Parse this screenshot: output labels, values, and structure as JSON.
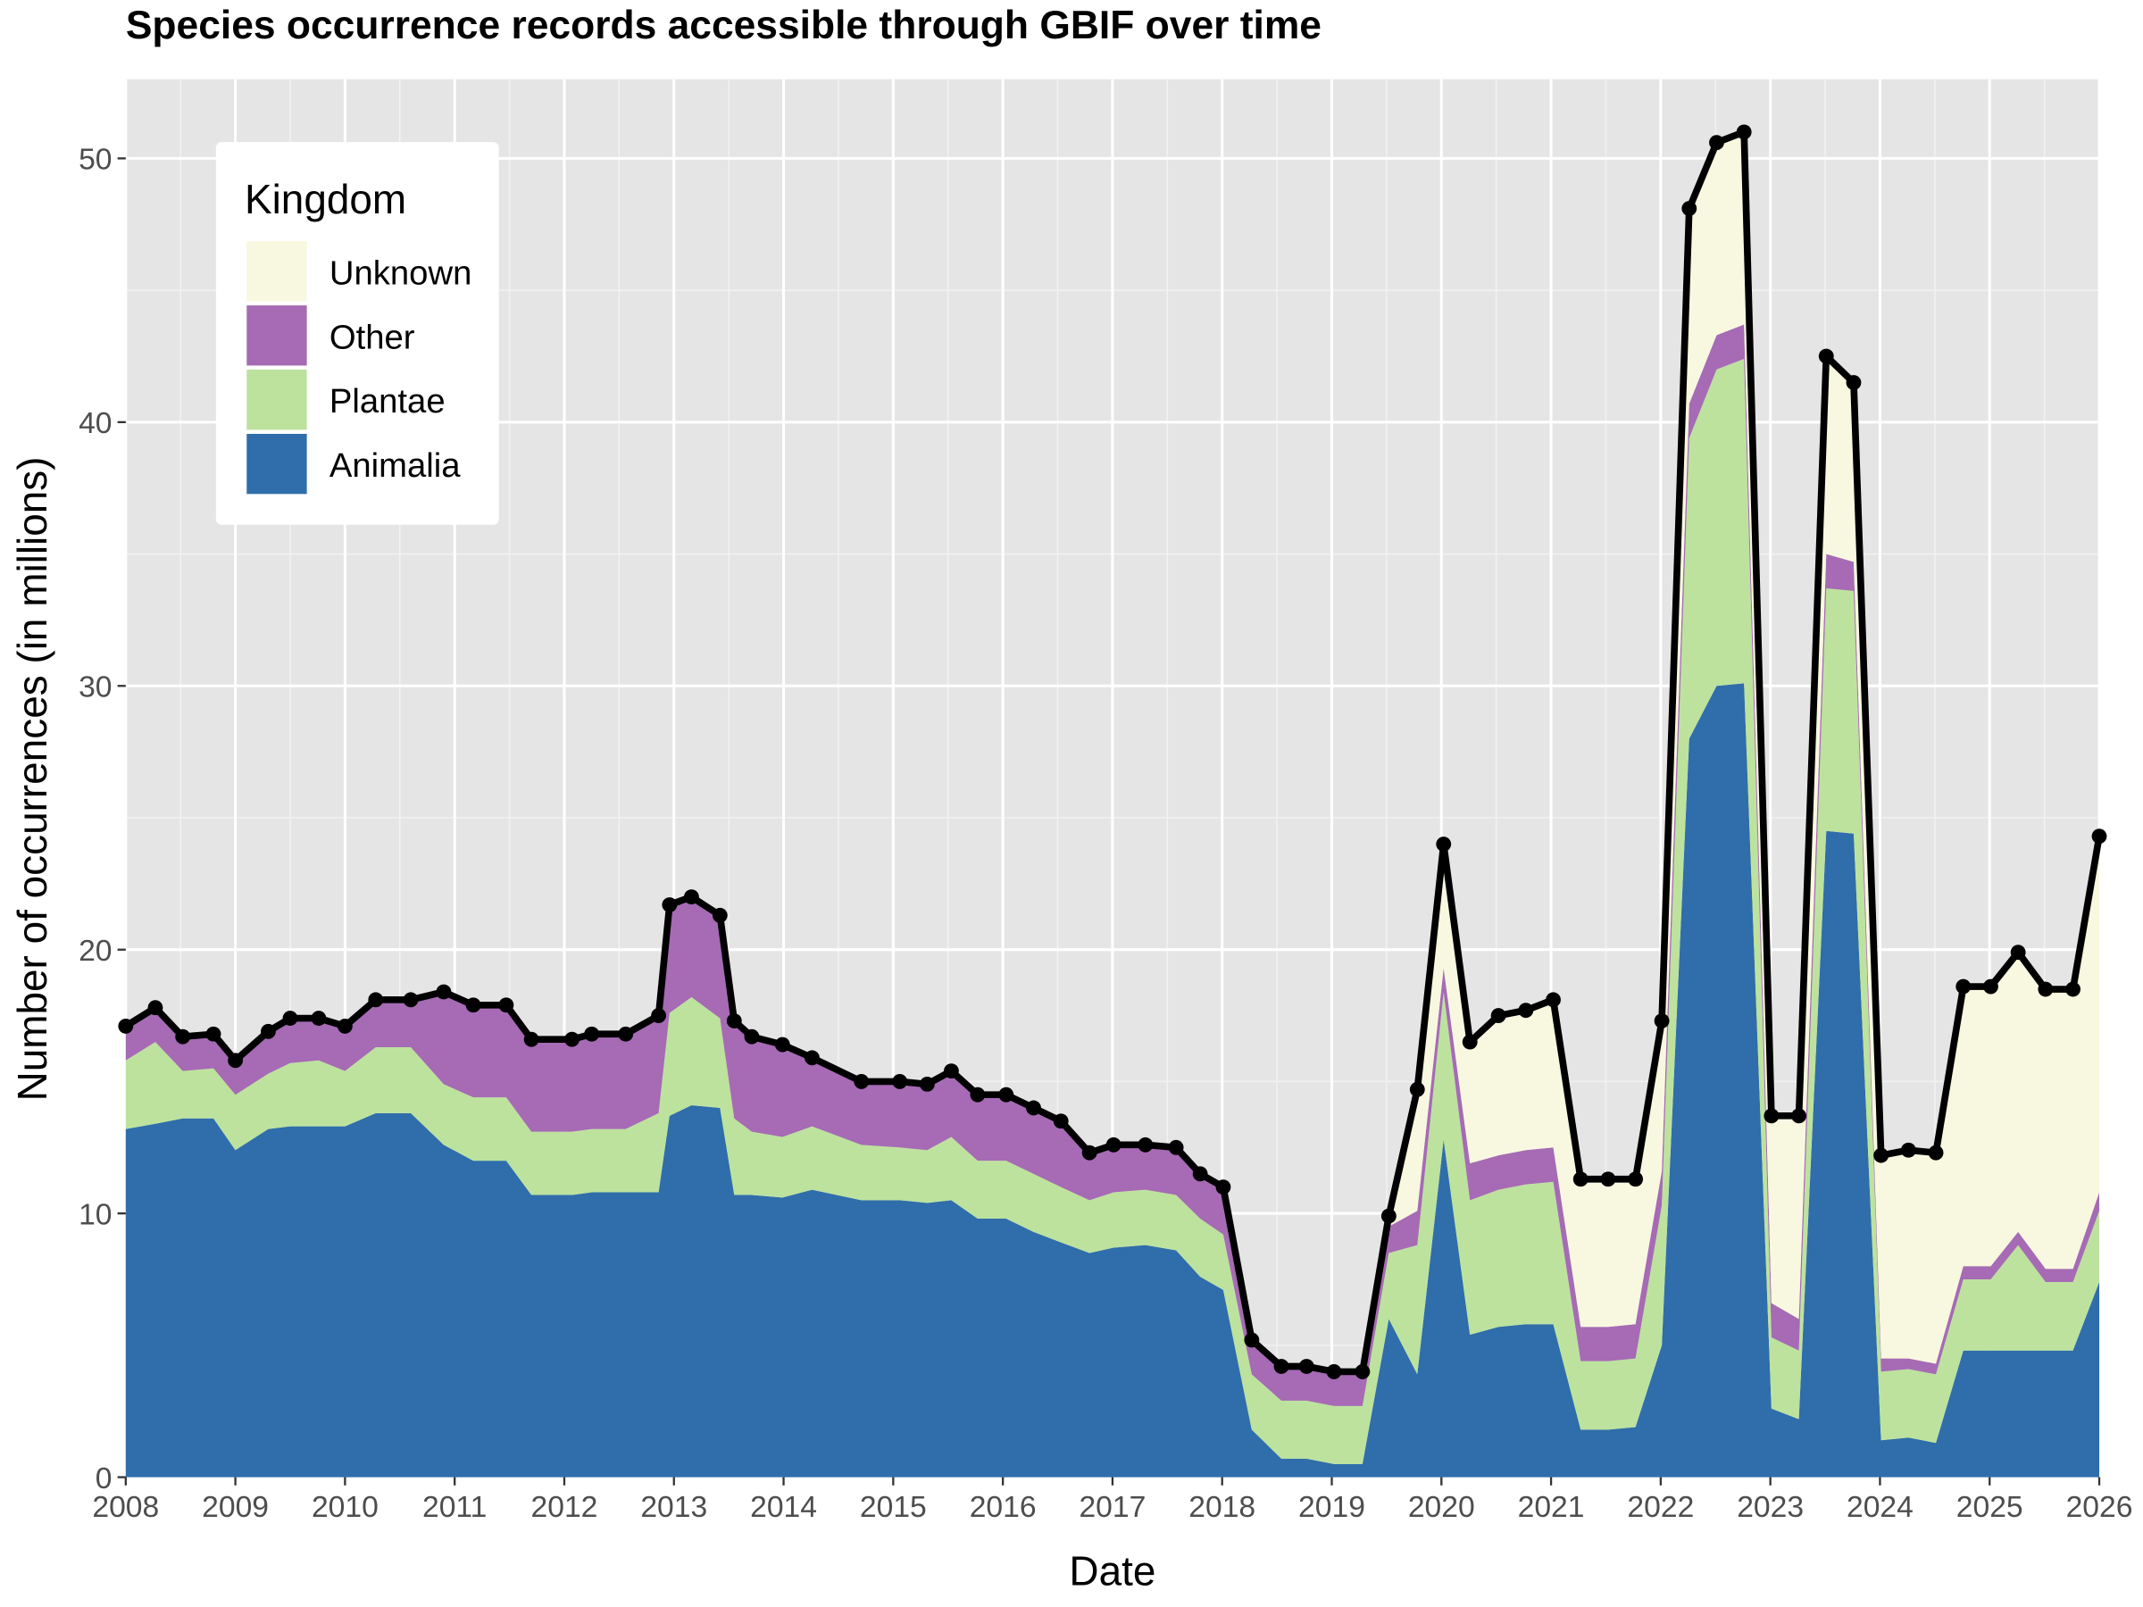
{
  "chart_data": {
    "type": "stacked-area",
    "title": "Species occurrence records accessible through GBIF over time",
    "x_label": "Date",
    "y_label": "Number of occurrences (in millions)",
    "legend_title": "Kingdom",
    "legend_position": "top-left",
    "grid": true,
    "stack_line_color": "#000000",
    "xlim": [
      2008,
      2026
    ],
    "xticks": [
      2008,
      2009,
      2010,
      2011,
      2012,
      2013,
      2014,
      2015,
      2016,
      2017,
      2018,
      2019,
      2020,
      2021,
      2022,
      2023,
      2024,
      2025,
      2026
    ],
    "ylim": [
      0,
      53
    ],
    "yticks": [
      0,
      10,
      20,
      30,
      40,
      50
    ],
    "x": [
      2008.0,
      2008.27,
      2008.52,
      2008.8,
      2009.0,
      2009.3,
      2009.5,
      2009.76,
      2010.0,
      2010.28,
      2010.6,
      2010.9,
      2011.17,
      2011.47,
      2011.7,
      2012.07,
      2012.25,
      2012.56,
      2012.86,
      2012.96,
      2013.16,
      2013.42,
      2013.55,
      2013.71,
      2013.99,
      2014.26,
      2014.71,
      2015.06,
      2015.31,
      2015.53,
      2015.77,
      2016.03,
      2016.28,
      2016.53,
      2016.79,
      2017.01,
      2017.3,
      2017.58,
      2017.8,
      2018.01,
      2018.27,
      2018.54,
      2018.77,
      2019.02,
      2019.28,
      2019.52,
      2019.78,
      2020.02,
      2020.26,
      2020.52,
      2020.77,
      2021.02,
      2021.27,
      2021.52,
      2021.77,
      2022.01,
      2022.26,
      2022.51,
      2022.76,
      2023.01,
      2023.26,
      2023.51,
      2023.76,
      2024.01,
      2024.26,
      2024.51,
      2024.76,
      2025.01,
      2025.26,
      2025.51,
      2025.76,
      2026.0
    ],
    "series": [
      {
        "name": "Animalia",
        "color": "#2f6eaa",
        "values": [
          13.2,
          13.4,
          13.6,
          13.6,
          12.4,
          13.2,
          13.3,
          13.3,
          13.3,
          13.8,
          13.8,
          12.6,
          12.0,
          12.0,
          10.7,
          10.7,
          10.8,
          10.8,
          10.8,
          13.7,
          14.1,
          14.0,
          10.7,
          10.7,
          10.6,
          10.9,
          10.5,
          10.5,
          10.4,
          10.5,
          9.8,
          9.8,
          9.3,
          8.9,
          8.5,
          8.7,
          8.8,
          8.6,
          7.6,
          7.1,
          1.8,
          0.7,
          0.7,
          0.5,
          0.5,
          6.0,
          3.9,
          12.8,
          5.4,
          5.7,
          5.8,
          5.8,
          1.8,
          1.8,
          1.9,
          5.0,
          28.0,
          30.0,
          30.1,
          2.6,
          2.2,
          24.5,
          24.4,
          1.4,
          1.5,
          1.3,
          4.8,
          4.8,
          4.8,
          4.8,
          4.8,
          7.4
        ]
      },
      {
        "name": "Plantae",
        "color": "#bde29e",
        "values": [
          2.6,
          3.1,
          1.8,
          1.9,
          2.1,
          2.1,
          2.4,
          2.5,
          2.1,
          2.5,
          2.5,
          2.3,
          2.4,
          2.4,
          2.4,
          2.4,
          2.4,
          2.4,
          3.0,
          3.9,
          4.1,
          3.4,
          2.9,
          2.4,
          2.3,
          2.4,
          2.1,
          2.0,
          2.0,
          2.4,
          2.2,
          2.2,
          2.2,
          2.1,
          2.0,
          2.1,
          2.1,
          2.1,
          2.2,
          2.1,
          2.1,
          2.2,
          2.2,
          2.2,
          2.2,
          2.5,
          4.9,
          5.6,
          5.1,
          5.2,
          5.3,
          5.4,
          2.6,
          2.6,
          2.6,
          5.3,
          11.4,
          12.0,
          12.3,
          2.7,
          2.6,
          9.2,
          9.2,
          2.6,
          2.6,
          2.6,
          2.7,
          2.7,
          4.0,
          2.6,
          2.6,
          2.7
        ]
      },
      {
        "name": "Other",
        "color": "#a66bb4",
        "values": [
          1.2,
          1.2,
          1.2,
          1.2,
          1.2,
          1.5,
          1.6,
          1.5,
          1.6,
          1.7,
          1.7,
          3.4,
          3.4,
          3.4,
          3.4,
          3.4,
          3.5,
          3.5,
          3.6,
          4.0,
          3.7,
          3.8,
          3.6,
          3.5,
          3.4,
          2.5,
          2.3,
          2.4,
          2.4,
          2.4,
          2.4,
          2.4,
          2.4,
          2.4,
          1.7,
          1.7,
          1.6,
          1.7,
          1.6,
          1.7,
          1.2,
          1.2,
          1.2,
          1.2,
          1.2,
          1.0,
          1.3,
          0.9,
          1.4,
          1.3,
          1.3,
          1.3,
          1.3,
          1.3,
          1.3,
          1.3,
          1.3,
          1.3,
          1.3,
          1.3,
          1.2,
          1.3,
          1.1,
          0.5,
          0.4,
          0.4,
          0.5,
          0.5,
          0.5,
          0.5,
          0.5,
          0.7
        ]
      },
      {
        "name": "Unknown",
        "color": "#f8f8e0",
        "values": [
          0.1,
          0.1,
          0.1,
          0.1,
          0.1,
          0.1,
          0.1,
          0.1,
          0.1,
          0.1,
          0.1,
          0.1,
          0.1,
          0.1,
          0.1,
          0.1,
          0.1,
          0.1,
          0.1,
          0.1,
          0.1,
          0.1,
          0.1,
          0.1,
          0.1,
          0.1,
          0.1,
          0.1,
          0.1,
          0.1,
          0.1,
          0.1,
          0.1,
          0.1,
          0.1,
          0.1,
          0.1,
          0.1,
          0.1,
          0.1,
          0.1,
          0.1,
          0.1,
          0.1,
          0.1,
          0.4,
          4.6,
          4.7,
          4.6,
          5.3,
          5.3,
          5.6,
          5.6,
          5.6,
          5.5,
          5.7,
          7.4,
          7.3,
          7.3,
          7.1,
          7.7,
          7.5,
          6.8,
          7.7,
          7.9,
          8.0,
          10.6,
          10.6,
          10.6,
          10.6,
          10.6,
          13.5
        ]
      }
    ]
  }
}
